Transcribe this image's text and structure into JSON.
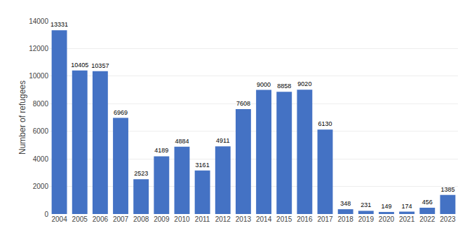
{
  "chart_data": {
    "type": "bar",
    "categories": [
      "2004",
      "2005",
      "2006",
      "2007",
      "2008",
      "2009",
      "2010",
      "2011",
      "2012",
      "2013",
      "2014",
      "2015",
      "2016",
      "2017",
      "2018",
      "2019",
      "2020",
      "2021",
      "2022",
      "2023"
    ],
    "values": [
      13331,
      10405,
      10357,
      6969,
      2523,
      4189,
      4884,
      3161,
      4911,
      7608,
      9000,
      8858,
      9020,
      6130,
      348,
      231,
      149,
      174,
      456,
      1385
    ],
    "color": "#4472C4",
    "ylabel": "Number of refugees",
    "ylim": [
      0,
      14000
    ],
    "yticks": [
      0,
      2000,
      4000,
      6000,
      8000,
      10000,
      12000,
      14000
    ],
    "grid": true,
    "data_labels": true
  }
}
